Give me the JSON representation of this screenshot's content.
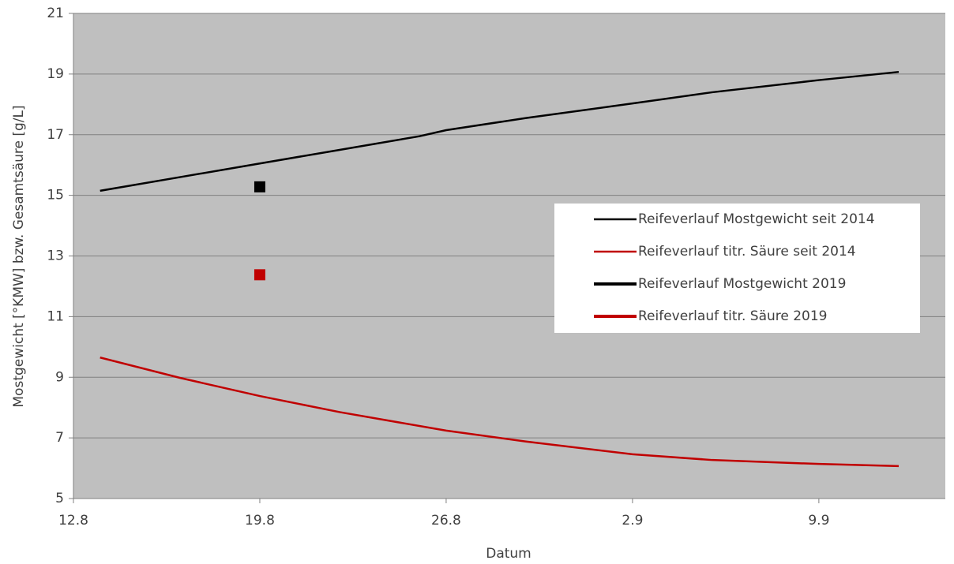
{
  "chart_data": {
    "type": "line",
    "x_label": "Datum",
    "y_label": "Mostgewicht [°KMW] bzw. Gesamtsäure [g/L]",
    "xlim": [
      224,
      256.75
    ],
    "xticks": [
      {
        "value": 224,
        "label": "12.8"
      },
      {
        "value": 231,
        "label": "19.8"
      },
      {
        "value": 238,
        "label": "26.8"
      },
      {
        "value": 245,
        "label": "2.9"
      },
      {
        "value": 252,
        "label": "9.9"
      }
    ],
    "ylim": [
      5,
      21
    ],
    "yticks": [
      5,
      7,
      9,
      11,
      13,
      15,
      17,
      19,
      21
    ],
    "grid": true,
    "legend": "right",
    "series": [
      {
        "name": "Reifeverlauf Mostgewicht seit 2014",
        "color": "#000000",
        "width": 2.5,
        "x": [
          225,
          228,
          231,
          234,
          237,
          238,
          241,
          245,
          248,
          252,
          255
        ],
        "values": [
          15.15,
          15.6,
          16.05,
          16.5,
          16.95,
          17.15,
          17.55,
          18.03,
          18.4,
          18.8,
          19.07
        ]
      },
      {
        "name": "Reifeverlauf titr. Säure seit 2014",
        "color": "#c00000",
        "width": 2.5,
        "x": [
          225,
          228,
          231,
          234,
          238,
          241,
          245,
          248,
          252,
          255
        ],
        "values": [
          9.65,
          8.98,
          8.38,
          7.85,
          7.24,
          6.88,
          6.46,
          6.27,
          6.14,
          6.07
        ]
      },
      {
        "name": "Reifeverlauf Mostgewicht 2019",
        "color": "#000000",
        "width": 4,
        "marker": "square",
        "x": [
          231
        ],
        "values": [
          15.28
        ]
      },
      {
        "name": "Reifeverlauf titr. Säure 2019",
        "color": "#c00000",
        "width": 4,
        "marker": "square",
        "x": [
          231
        ],
        "values": [
          12.38
        ]
      }
    ]
  }
}
